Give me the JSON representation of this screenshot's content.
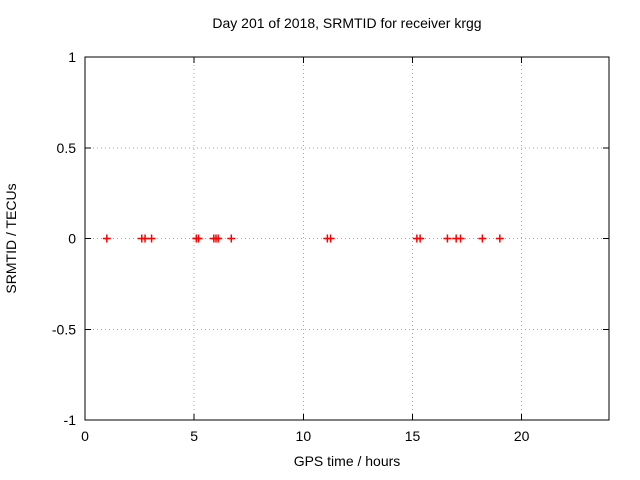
{
  "window": {
    "background": "#ffffff"
  },
  "chart_data": {
    "type": "scatter",
    "title": "Day 201 of 2018, SRMTID for receiver krgg",
    "xlabel": "GPS time / hours",
    "ylabel": "SRMTID / TECUs",
    "xlim": [
      0,
      24
    ],
    "ylim": [
      -1,
      1
    ],
    "xticks": [
      0,
      5,
      10,
      15,
      20
    ],
    "xtick_labels": [
      "0",
      "5",
      "10",
      "15",
      "20"
    ],
    "yticks": [
      1,
      0.5,
      0,
      -0.5,
      -1
    ],
    "ytick_labels": [
      "1",
      "0.5",
      "0",
      "-0.5",
      "-1"
    ],
    "grid": "dotted",
    "legend": "none",
    "marker": "plus",
    "series": [
      {
        "name": "SRMTID",
        "color": "#ff0000",
        "x": [
          1.0,
          2.6,
          2.75,
          3.05,
          5.1,
          5.2,
          5.9,
          6.0,
          6.1,
          6.7,
          11.1,
          11.25,
          15.2,
          15.35,
          16.6,
          17.0,
          17.2,
          18.2,
          19.0
        ],
        "y": [
          0,
          0,
          0,
          0,
          0,
          0,
          0,
          0,
          0,
          0,
          0,
          0,
          0,
          0,
          0,
          0,
          0,
          0,
          0
        ]
      }
    ]
  },
  "colors": {
    "axis": "#000000",
    "grid": "#a6a6a6",
    "text": "#000000",
    "background": "#ffffff"
  }
}
